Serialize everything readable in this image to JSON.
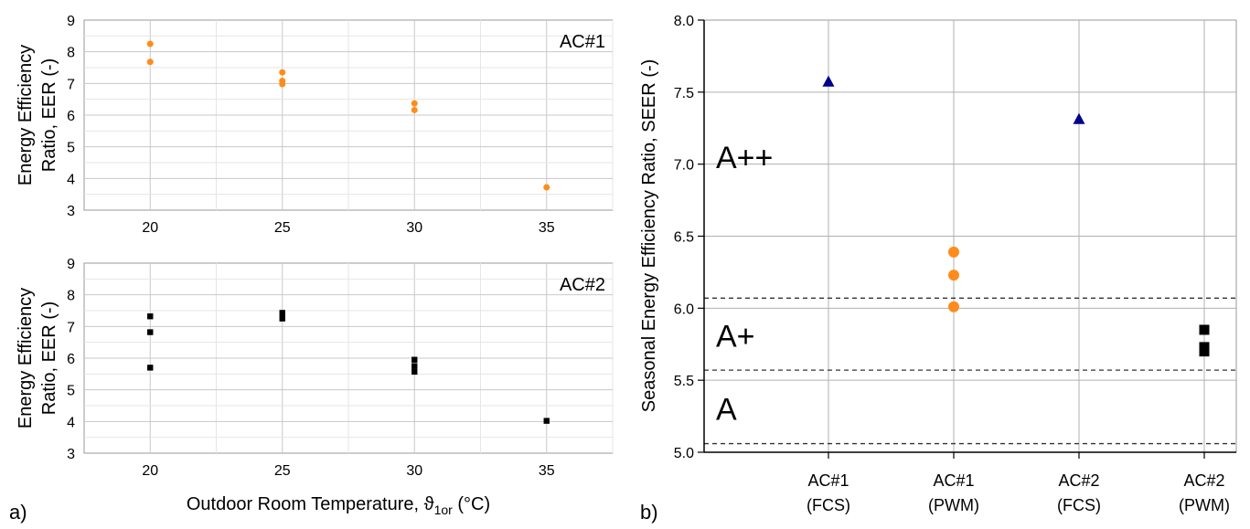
{
  "chart_data": [
    {
      "type": "scatter",
      "plot": "ac1-eer",
      "panel_tag": "a)",
      "annotation": "AC#1",
      "ylabel_lines": [
        "Energy Efficiency",
        "Ratio, EER (-)"
      ],
      "xlabel_main": "Outdoor Room Temperature, ϑ",
      "xlabel_sub": "1or",
      "xlabel_unit": " (°C)",
      "xlim": [
        17.5,
        37.5
      ],
      "ylim": [
        3,
        9
      ],
      "x_ticks": [
        20,
        25,
        30,
        35
      ],
      "y_ticks": [
        3,
        4,
        5,
        6,
        7,
        8,
        9
      ],
      "grid": true,
      "color": "#ff8c1a",
      "marker": "circle",
      "points": [
        {
          "x": 20,
          "y": 8.25
        },
        {
          "x": 20,
          "y": 7.68
        },
        {
          "x": 25,
          "y": 7.35
        },
        {
          "x": 25,
          "y": 7.08
        },
        {
          "x": 25,
          "y": 6.98
        },
        {
          "x": 30,
          "y": 6.37
        },
        {
          "x": 30,
          "y": 6.16
        },
        {
          "x": 35,
          "y": 3.72
        }
      ]
    },
    {
      "type": "scatter",
      "plot": "ac2-eer",
      "annotation": "AC#2",
      "ylabel_lines": [
        "Energy Efficiency",
        "Ratio, EER (-)"
      ],
      "xlim": [
        17.5,
        37.5
      ],
      "ylim": [
        3,
        9
      ],
      "x_ticks": [
        20,
        25,
        30,
        35
      ],
      "y_ticks": [
        3,
        4,
        5,
        6,
        7,
        8,
        9
      ],
      "grid": true,
      "color": "#000000",
      "marker": "square",
      "points": [
        {
          "x": 20,
          "y": 7.32
        },
        {
          "x": 20,
          "y": 6.82
        },
        {
          "x": 20,
          "y": 5.7
        },
        {
          "x": 25,
          "y": 7.43
        },
        {
          "x": 25,
          "y": 7.25
        },
        {
          "x": 30,
          "y": 5.95
        },
        {
          "x": 30,
          "y": 5.75
        },
        {
          "x": 30,
          "y": 5.57
        },
        {
          "x": 35,
          "y": 4.02
        }
      ]
    },
    {
      "type": "scatter",
      "plot": "seer",
      "panel_tag": "b)",
      "ylabel": "Seasonal Energy Efficiency Ratio, SEER (-)",
      "ylim": [
        5.0,
        8.0
      ],
      "y_ticks": [
        "5.0",
        "5.5",
        "6.0",
        "6.5",
        "7.0",
        "7.5",
        "8.0"
      ],
      "categories": [
        [
          "AC#1",
          "(FCS)"
        ],
        [
          "AC#1",
          "(PWM)"
        ],
        [
          "AC#2",
          "(FCS)"
        ],
        [
          "AC#2",
          "(PWM)"
        ]
      ],
      "grid": true,
      "class_thresholds": [
        6.07,
        5.57,
        5.06
      ],
      "class_labels": [
        {
          "label": "A++",
          "y": 7.05
        },
        {
          "label": "A+",
          "y": 5.81
        },
        {
          "label": "A",
          "y": 5.3
        }
      ],
      "groups": [
        {
          "category": 0,
          "marker": "triangle",
          "color": "#00008b",
          "values": [
            7.57
          ]
        },
        {
          "category": 1,
          "marker": "circle",
          "color": "#ff8c1a",
          "values": [
            6.39,
            6.23,
            6.01
          ]
        },
        {
          "category": 2,
          "marker": "triangle",
          "color": "#00008b",
          "values": [
            7.31
          ]
        },
        {
          "category": 3,
          "marker": "square",
          "color": "#000000",
          "values": [
            5.85,
            5.73,
            5.7
          ]
        }
      ]
    }
  ]
}
